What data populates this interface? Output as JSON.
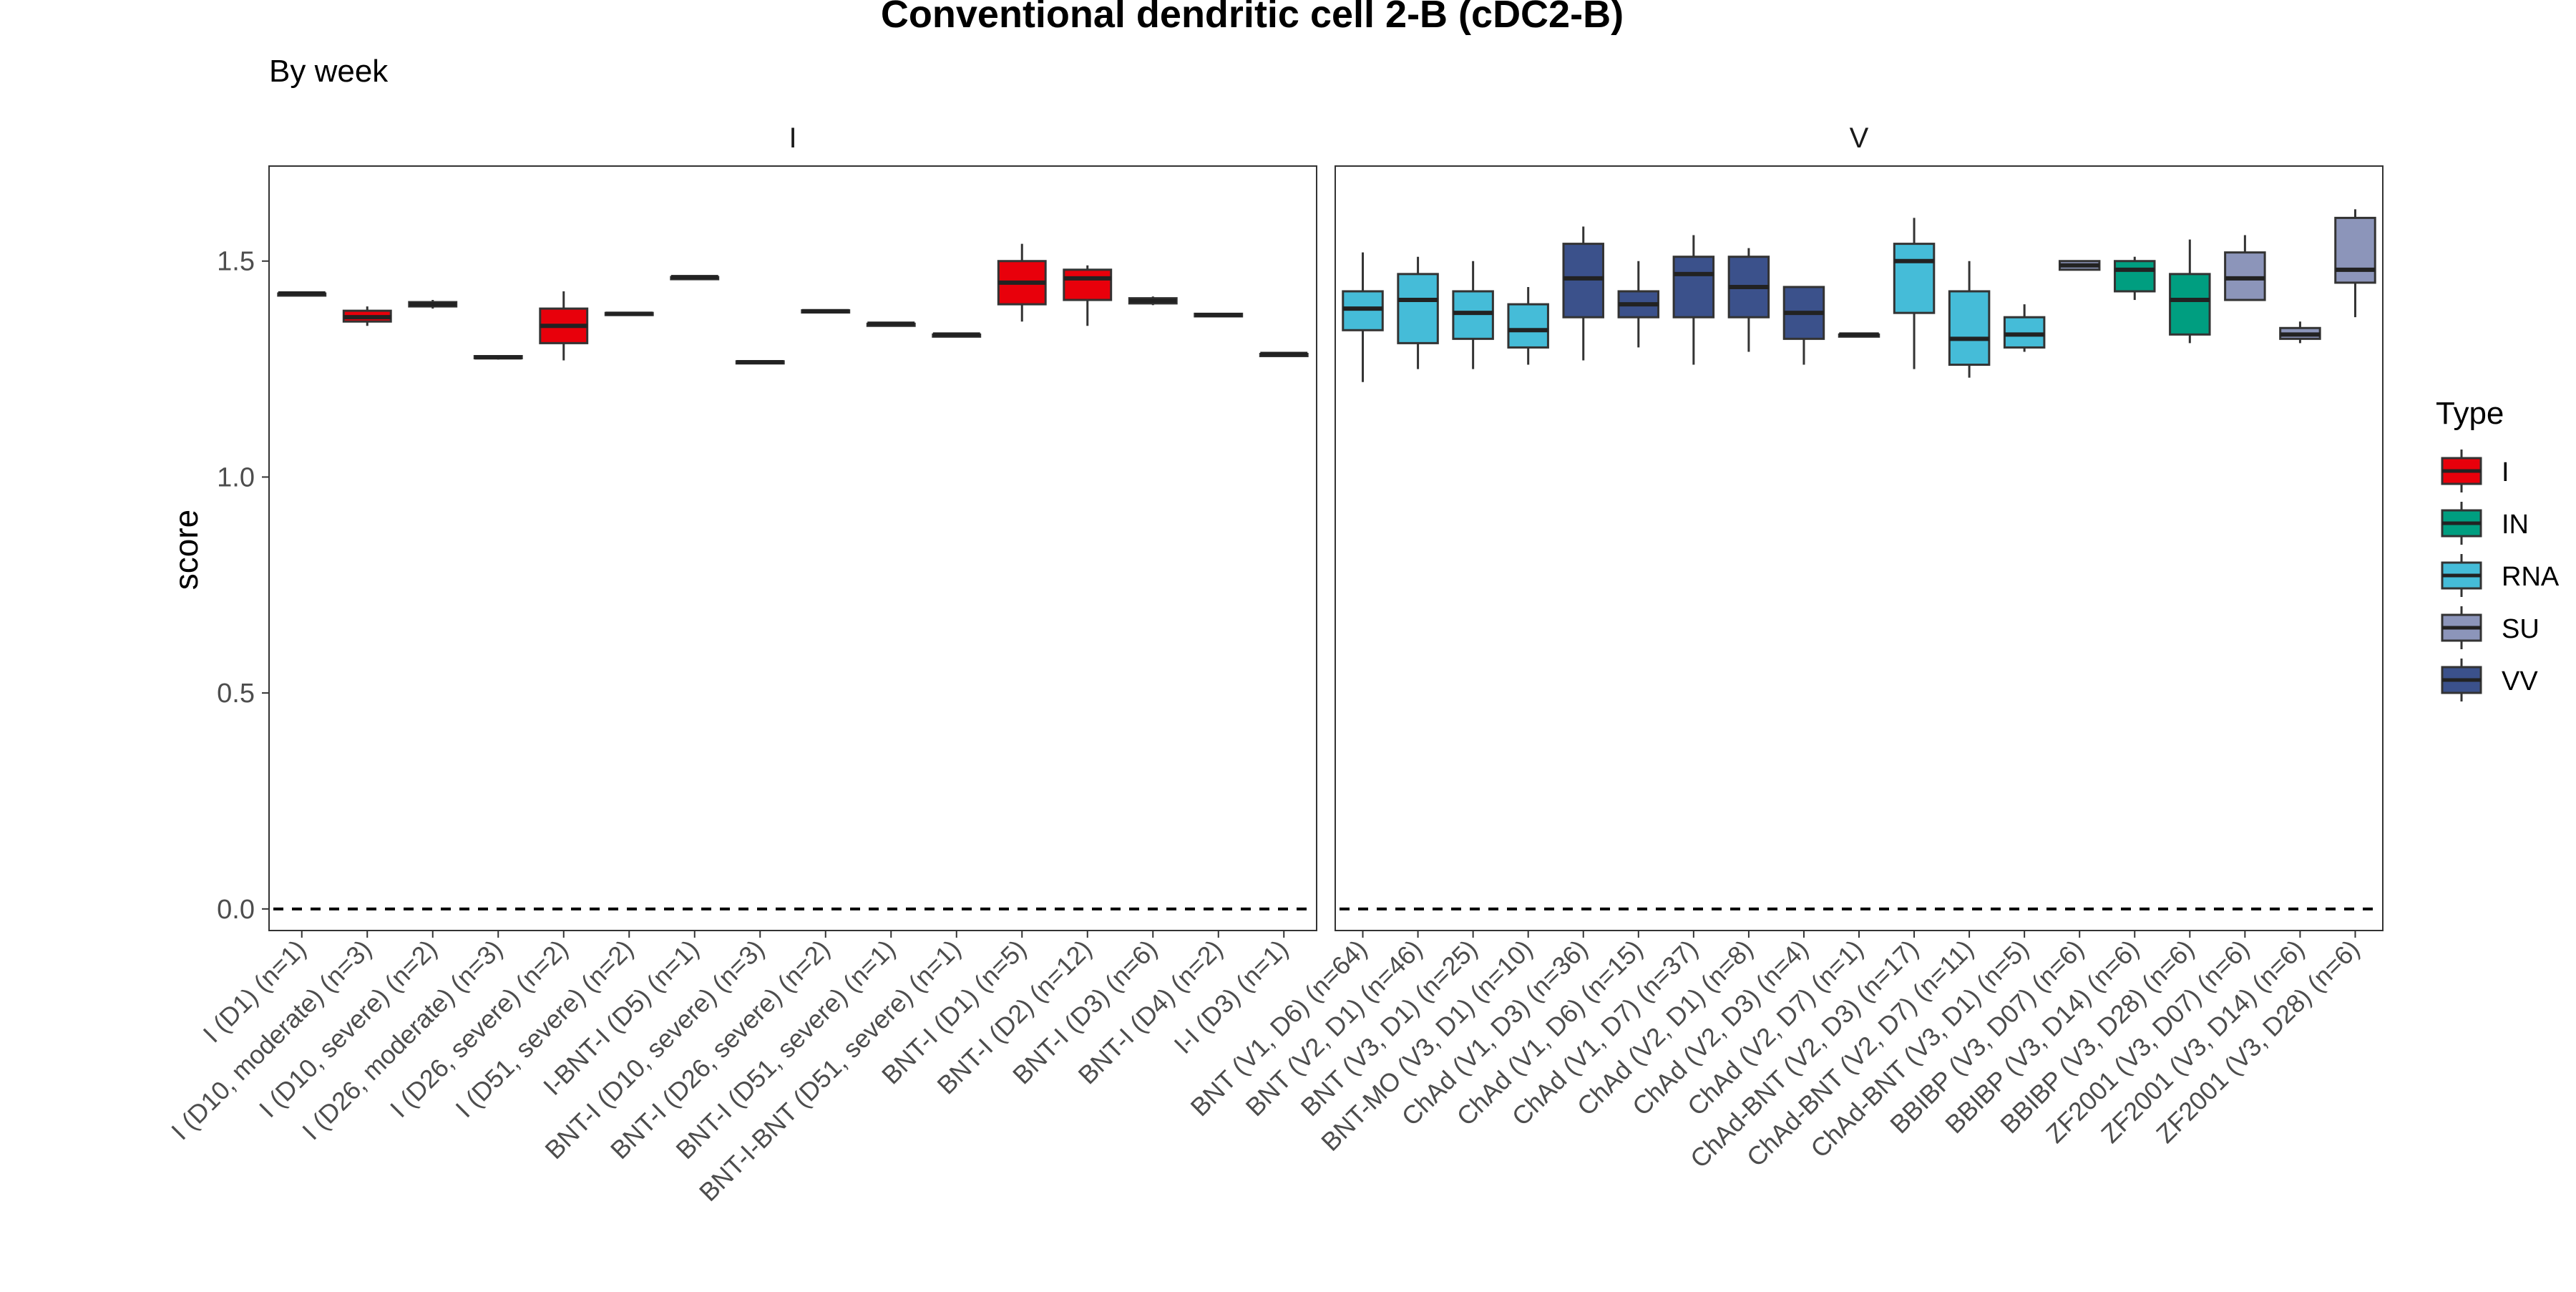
{
  "chart_data": {
    "type": "boxplot",
    "title": "Conventional dendritic cell 2-B (cDC2-B)",
    "subtitle": "By week",
    "ylabel": "score",
    "ylim": [
      -0.05,
      1.72
    ],
    "yticks": [
      0.0,
      0.5,
      1.0,
      1.5
    ],
    "ytick_labels": [
      "0.0",
      "0.5",
      "1.0",
      "1.5"
    ],
    "reference_line": 0.0,
    "grid": false,
    "legend": {
      "title": "Type",
      "position": "right",
      "entries": [
        {
          "label": "I",
          "color": "#E8000B"
        },
        {
          "label": "IN",
          "color": "#009E80"
        },
        {
          "label": "RNA",
          "color": "#45BCD8"
        },
        {
          "label": "SU",
          "color": "#8C95BA"
        },
        {
          "label": "VV",
          "color": "#3B518B"
        }
      ]
    },
    "panels": [
      {
        "name": "I",
        "groups": [
          {
            "label": "I (D1) (n=1)",
            "type": "I",
            "q1": 1.425,
            "median": 1.425,
            "q3": 1.425,
            "min": 1.425,
            "max": 1.425
          },
          {
            "label": "I (D10, moderate) (n=3)",
            "type": "I",
            "q1": 1.36,
            "median": 1.37,
            "q3": 1.385,
            "min": 1.35,
            "max": 1.395
          },
          {
            "label": "I (D10, severe) (n=2)",
            "type": "I",
            "q1": 1.395,
            "median": 1.4,
            "q3": 1.405,
            "min": 1.39,
            "max": 1.41
          },
          {
            "label": "I (D26, moderate) (n=3)",
            "type": "I",
            "q1": 1.275,
            "median": 1.277,
            "q3": 1.28,
            "min": 1.272,
            "max": 1.282
          },
          {
            "label": "I (D26, severe) (n=2)",
            "type": "I",
            "q1": 1.31,
            "median": 1.35,
            "q3": 1.39,
            "min": 1.27,
            "max": 1.43
          },
          {
            "label": "I (D51, severe) (n=2)",
            "type": "I",
            "q1": 1.376,
            "median": 1.378,
            "q3": 1.38,
            "min": 1.374,
            "max": 1.382
          },
          {
            "label": "I-BNT-I (D5) (n=1)",
            "type": "I",
            "q1": 1.463,
            "median": 1.463,
            "q3": 1.463,
            "min": 1.463,
            "max": 1.463
          },
          {
            "label": "BNT-I (D10, severe) (n=3)",
            "type": "I",
            "q1": 1.264,
            "median": 1.266,
            "q3": 1.268,
            "min": 1.262,
            "max": 1.27
          },
          {
            "label": "BNT-I (D26, severe) (n=2)",
            "type": "I",
            "q1": 1.382,
            "median": 1.384,
            "q3": 1.386,
            "min": 1.38,
            "max": 1.388
          },
          {
            "label": "BNT-I (D51, severe) (n=1)",
            "type": "I",
            "q1": 1.355,
            "median": 1.355,
            "q3": 1.355,
            "min": 1.355,
            "max": 1.355
          },
          {
            "label": "BNT-I-BNT (D51, severe) (n=1)",
            "type": "I",
            "q1": 1.33,
            "median": 1.33,
            "q3": 1.33,
            "min": 1.33,
            "max": 1.33
          },
          {
            "label": "BNT-I (D1) (n=5)",
            "type": "I",
            "q1": 1.4,
            "median": 1.45,
            "q3": 1.5,
            "min": 1.36,
            "max": 1.54
          },
          {
            "label": "BNT-I (D2) (n=12)",
            "type": "I",
            "q1": 1.41,
            "median": 1.46,
            "q3": 1.48,
            "min": 1.35,
            "max": 1.49
          },
          {
            "label": "BNT-I (D3) (n=6)",
            "type": "I",
            "q1": 1.402,
            "median": 1.408,
            "q3": 1.414,
            "min": 1.398,
            "max": 1.418
          },
          {
            "label": "BNT-I (D4) (n=2)",
            "type": "I",
            "q1": 1.372,
            "median": 1.375,
            "q3": 1.378,
            "min": 1.37,
            "max": 1.38
          },
          {
            "label": "I-I (D3) (n=1)",
            "type": "I",
            "q1": 1.285,
            "median": 1.285,
            "q3": 1.285,
            "min": 1.285,
            "max": 1.285
          }
        ]
      },
      {
        "name": "V",
        "groups": [
          {
            "label": "BNT (V1, D6) (n=64)",
            "type": "RNA",
            "q1": 1.34,
            "median": 1.39,
            "q3": 1.43,
            "min": 1.22,
            "max": 1.52
          },
          {
            "label": "BNT (V2, D1) (n=46)",
            "type": "RNA",
            "q1": 1.31,
            "median": 1.41,
            "q3": 1.47,
            "min": 1.25,
            "max": 1.51
          },
          {
            "label": "BNT (V3, D1) (n=25)",
            "type": "RNA",
            "q1": 1.32,
            "median": 1.38,
            "q3": 1.43,
            "min": 1.25,
            "max": 1.5
          },
          {
            "label": "BNT-MO (V3, D1) (n=10)",
            "type": "RNA",
            "q1": 1.3,
            "median": 1.34,
            "q3": 1.4,
            "min": 1.26,
            "max": 1.44
          },
          {
            "label": "ChAd (V1, D3) (n=36)",
            "type": "VV",
            "q1": 1.37,
            "median": 1.46,
            "q3": 1.54,
            "min": 1.27,
            "max": 1.58
          },
          {
            "label": "ChAd (V1, D6) (n=15)",
            "type": "VV",
            "q1": 1.37,
            "median": 1.4,
            "q3": 1.43,
            "min": 1.3,
            "max": 1.5
          },
          {
            "label": "ChAd (V1, D7) (n=37)",
            "type": "VV",
            "q1": 1.37,
            "median": 1.47,
            "q3": 1.51,
            "min": 1.26,
            "max": 1.56
          },
          {
            "label": "ChAd (V2, D1) (n=8)",
            "type": "VV",
            "q1": 1.37,
            "median": 1.44,
            "q3": 1.51,
            "min": 1.29,
            "max": 1.53
          },
          {
            "label": "ChAd (V2, D3) (n=4)",
            "type": "VV",
            "q1": 1.32,
            "median": 1.38,
            "q3": 1.44,
            "min": 1.26,
            "max": 1.44
          },
          {
            "label": "ChAd (V2, D7) (n=1)",
            "type": "VV",
            "q1": 1.33,
            "median": 1.33,
            "q3": 1.33,
            "min": 1.33,
            "max": 1.33
          },
          {
            "label": "ChAd-BNT (V2, D3) (n=17)",
            "type": "RNA",
            "q1": 1.38,
            "median": 1.5,
            "q3": 1.54,
            "min": 1.25,
            "max": 1.6
          },
          {
            "label": "ChAd-BNT (V2, D7) (n=11)",
            "type": "RNA",
            "q1": 1.26,
            "median": 1.32,
            "q3": 1.43,
            "min": 1.23,
            "max": 1.5
          },
          {
            "label": "ChAd-BNT (V3, D1) (n=5)",
            "type": "RNA",
            "q1": 1.3,
            "median": 1.33,
            "q3": 1.37,
            "min": 1.29,
            "max": 1.4
          },
          {
            "label": "BBIBP (V3, D07) (n=6)",
            "type": "SU",
            "q1": 1.48,
            "median": 1.49,
            "q3": 1.5,
            "min": 1.48,
            "max": 1.5
          },
          {
            "label": "BBIBP (V3, D14) (n=6)",
            "type": "IN",
            "q1": 1.43,
            "median": 1.48,
            "q3": 1.5,
            "min": 1.41,
            "max": 1.51
          },
          {
            "label": "BBIBP (V3, D28) (n=6)",
            "type": "IN",
            "q1": 1.33,
            "median": 1.41,
            "q3": 1.47,
            "min": 1.31,
            "max": 1.55
          },
          {
            "label": "ZF2001 (V3, D07) (n=6)",
            "type": "SU",
            "q1": 1.41,
            "median": 1.46,
            "q3": 1.52,
            "min": 1.41,
            "max": 1.56
          },
          {
            "label": "ZF2001 (V3, D14) (n=6)",
            "type": "SU",
            "q1": 1.32,
            "median": 1.33,
            "q3": 1.345,
            "min": 1.31,
            "max": 1.36
          },
          {
            "label": "ZF2001 (V3, D28) (n=6)",
            "type": "SU",
            "q1": 1.45,
            "median": 1.48,
            "q3": 1.6,
            "min": 1.37,
            "max": 1.62
          }
        ]
      }
    ]
  }
}
